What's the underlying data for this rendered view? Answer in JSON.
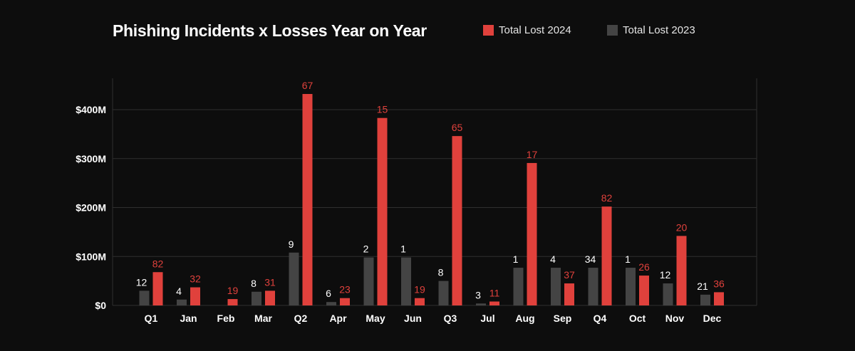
{
  "chart_data": {
    "type": "bar",
    "title": "Phishing Incidents x Losses Year on Year",
    "xlabel": "",
    "ylabel": "",
    "categories": [
      "Q1",
      "Jan",
      "Feb",
      "Mar",
      "Q2",
      "Apr",
      "May",
      "Jun",
      "Q3",
      "Jul",
      "Aug",
      "Sep",
      "Q4",
      "Oct",
      "Nov",
      "Dec"
    ],
    "series": [
      {
        "name": "Total Lost 2023",
        "color": "#444444",
        "values": [
          30,
          12,
          0,
          28,
          108,
          7,
          98,
          98,
          50,
          4,
          77,
          77,
          77,
          77,
          45,
          22
        ],
        "labels": [
          "12",
          "4",
          "",
          "8",
          "9",
          "6",
          "2",
          "1",
          "8",
          "3",
          "1",
          "4",
          "34",
          "1",
          "12",
          "21"
        ]
      },
      {
        "name": "Total Lost 2024",
        "color": "#e0413c",
        "values": [
          68,
          37,
          13,
          30,
          432,
          15,
          383,
          15,
          346,
          8,
          291,
          45,
          202,
          61,
          142,
          27
        ],
        "labels": [
          "82",
          "32",
          "19",
          "31",
          "67",
          "23",
          "15",
          "19",
          "65",
          "11",
          "17",
          "37",
          "82",
          "26",
          "20",
          "36"
        ]
      }
    ],
    "yticks": [
      0,
      100,
      200,
      300,
      400
    ],
    "ytick_labels": [
      "$0",
      "$100M",
      "$200M",
      "$300M",
      "$400M"
    ],
    "ylim": [
      0,
      450
    ],
    "grid": true,
    "legend_position": "top-right",
    "colors": {
      "background": "#0d0d0d",
      "grid": "#2f2f2f",
      "text": "#ffffff",
      "accent": "#e0413c",
      "muted": "#444444"
    }
  }
}
